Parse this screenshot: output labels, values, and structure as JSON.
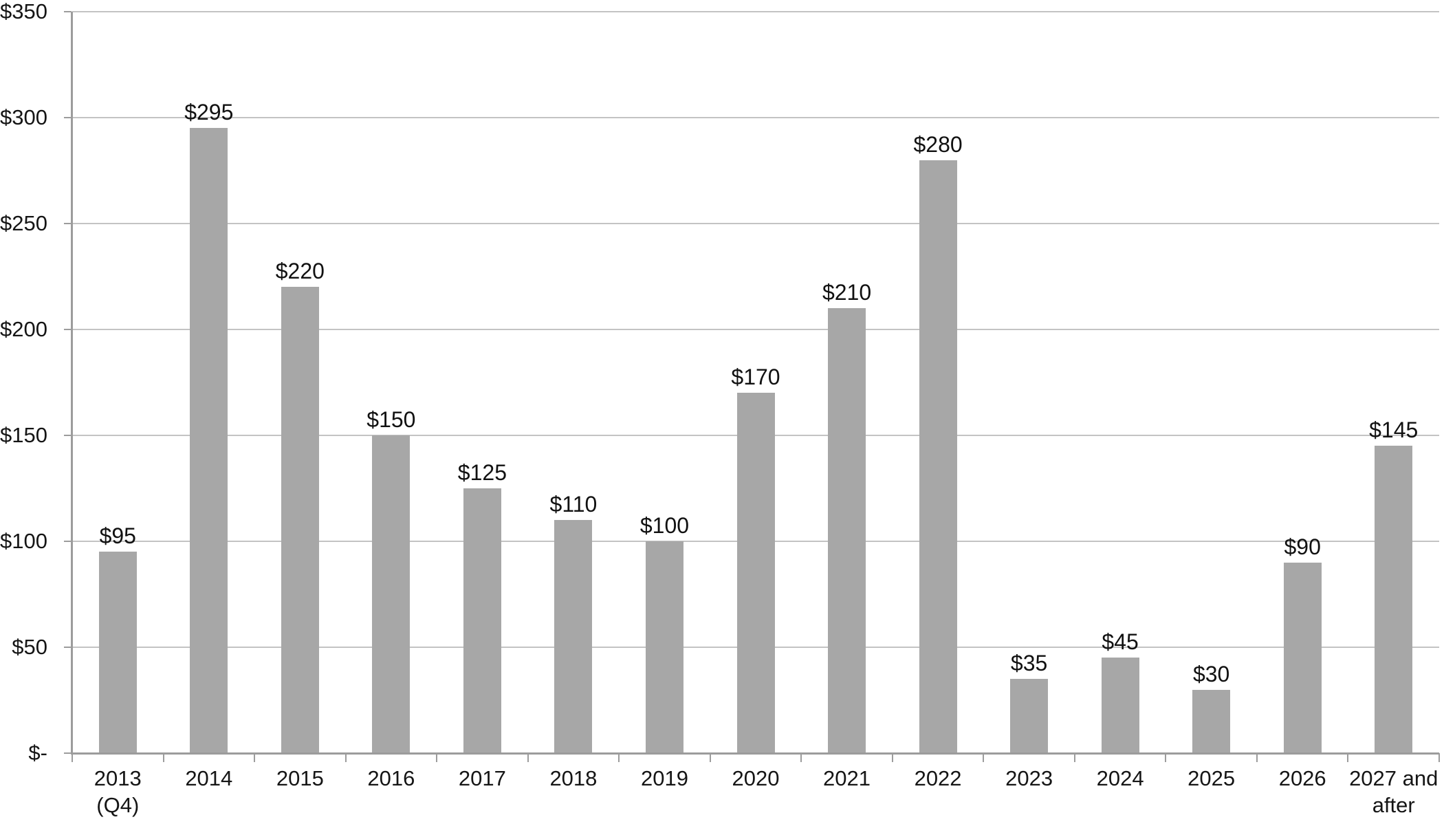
{
  "chart_data": {
    "type": "bar",
    "title": "",
    "xlabel": "",
    "ylabel": "",
    "categories": [
      "2013\n(Q4)",
      "2014",
      "2015",
      "2016",
      "2017",
      "2018",
      "2019",
      "2020",
      "2021",
      "2022",
      "2023",
      "2024",
      "2025",
      "2026",
      "2027 and\nafter"
    ],
    "values": [
      95,
      295,
      220,
      150,
      125,
      110,
      100,
      170,
      210,
      280,
      35,
      45,
      30,
      90,
      145
    ],
    "data_labels": [
      "$95",
      "$295",
      "$220",
      "$150",
      "$125",
      "$110",
      "$100",
      "$170",
      "$210",
      "$280",
      "$35",
      "$45",
      "$30",
      "$90",
      "$145"
    ],
    "ylim": [
      0,
      350
    ],
    "ytick_interval": 50,
    "ytick_labels": [
      "$-",
      "$50",
      "$100",
      "$150",
      "$200",
      "$250",
      "$300",
      "$350"
    ],
    "grid": true,
    "legend": false,
    "colors": {
      "bar": "#A7A7A7",
      "gridline": "#C3C3C3",
      "axis": "#9C9C9C",
      "text": "#151515",
      "background": "#FFFFFF"
    }
  }
}
